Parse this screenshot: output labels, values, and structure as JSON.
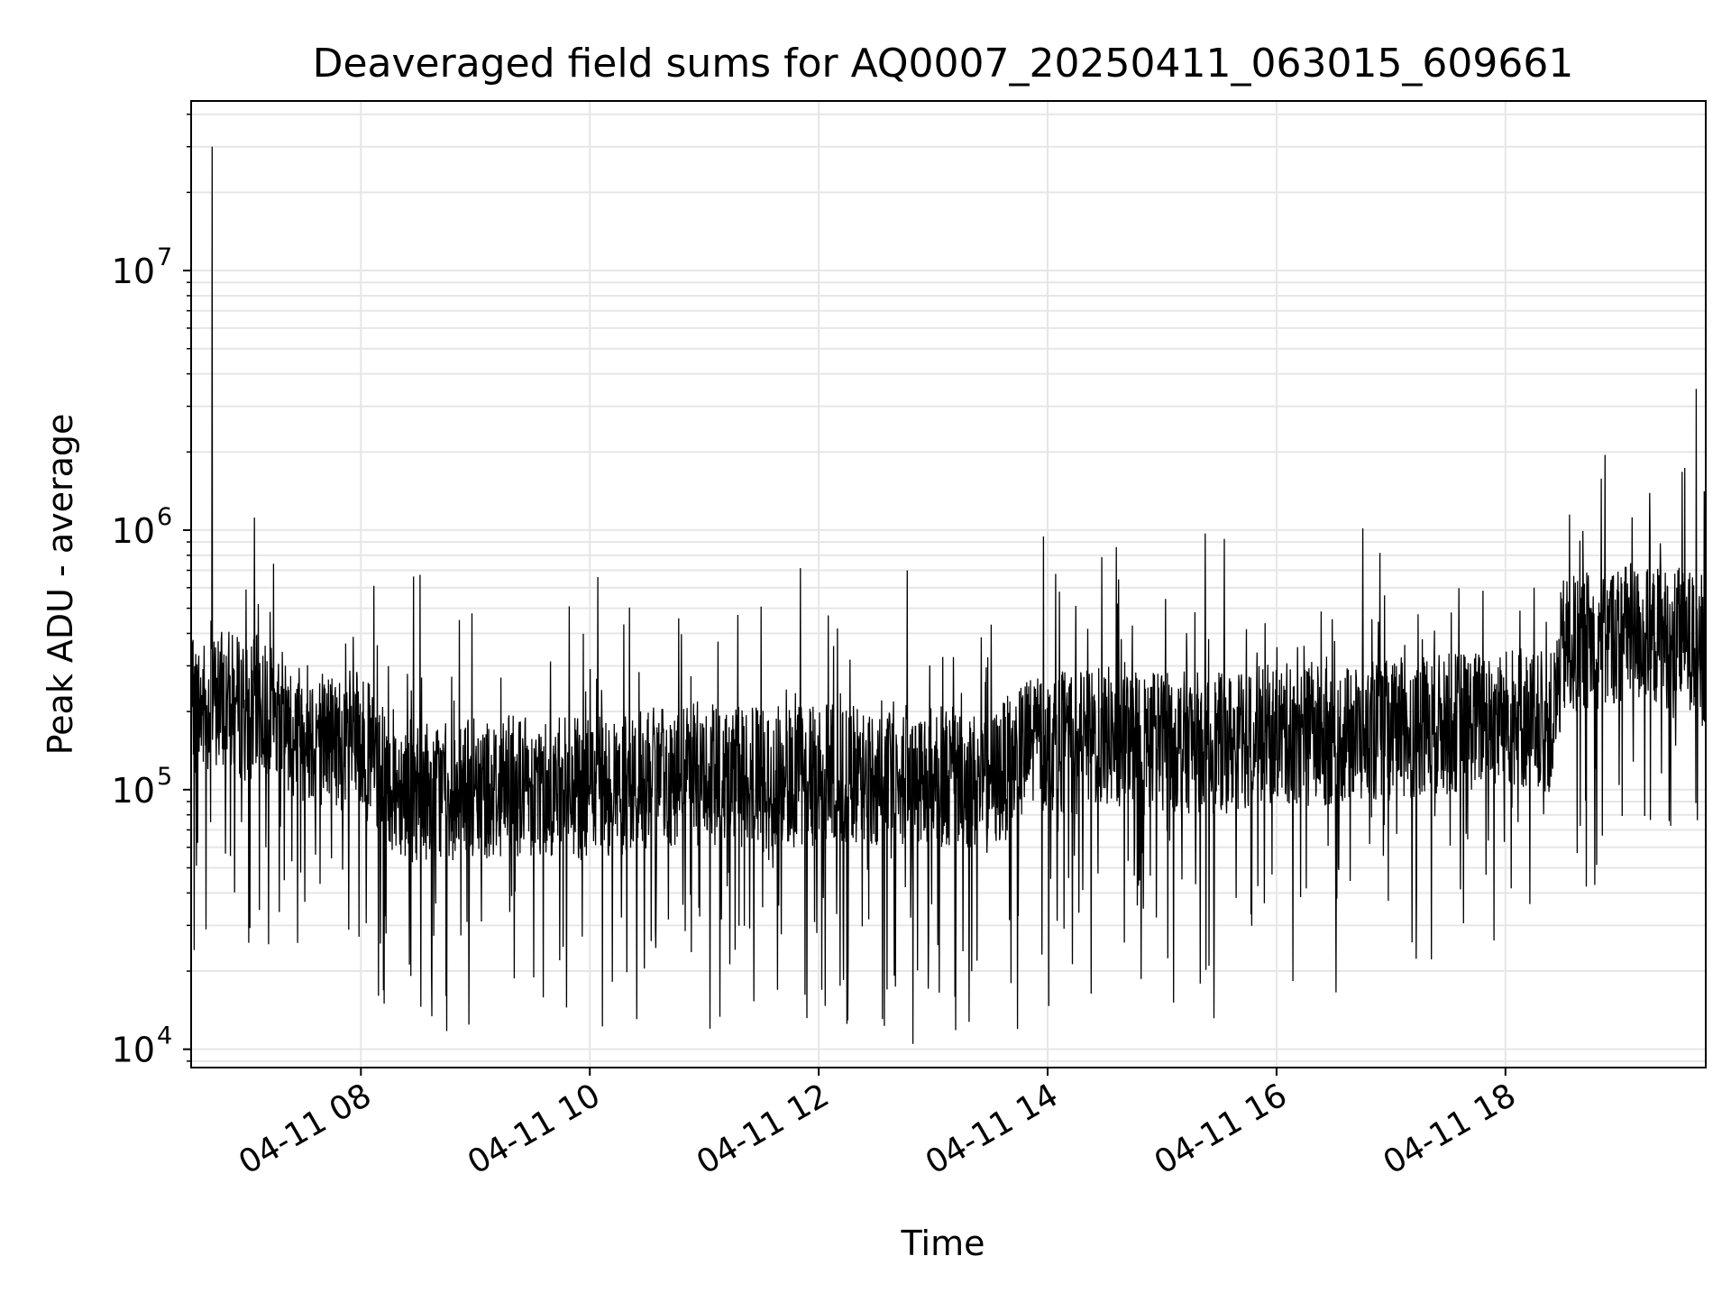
{
  "chart_data": {
    "type": "line",
    "title": "Deaveraged field sums for AQ0007_20250411_063015_609661",
    "xlabel": "Time",
    "ylabel": "Peak ADU - average",
    "yscale": "log",
    "grid": true,
    "legend": "none",
    "x_range": [
      "2025-04-11T06:31:00",
      "2025-04-11T19:45:00"
    ],
    "ylim": [
      8500,
      45000000
    ],
    "x_tick_values": [
      "2025-04-11T08:00:00",
      "2025-04-11T10:00:00",
      "2025-04-11T12:00:00",
      "2025-04-11T14:00:00",
      "2025-04-11T16:00:00",
      "2025-04-11T18:00:00"
    ],
    "x_tick_labels": [
      "04-11 08",
      "04-11 10",
      "04-11 12",
      "04-11 14",
      "04-11 16",
      "04-11 18"
    ],
    "y_tick_values": [
      10000,
      100000,
      1000000,
      10000000
    ],
    "y_tick_labels": [
      "10",
      "10",
      "10",
      "10"
    ],
    "y_tick_exponents": [
      "4",
      "5",
      "6",
      "7"
    ],
    "line_color": "#000000",
    "grid_color": "#e6e6e6",
    "series": [
      {
        "values_note": "",
        "x": [
          "2025-04-11T06:31:00",
          "2025-04-11T06:40:00",
          "2025-04-11T06:42:00",
          "2025-04-11T06:50:00",
          "2025-04-11T07:00:00",
          "2025-04-11T07:06:00",
          "2025-04-11T07:15:00",
          "2025-04-11T07:30:00",
          "2025-04-11T07:45:00",
          "2025-04-11T08:00:00",
          "2025-04-11T08:15:00",
          "2025-04-11T08:30:00",
          "2025-04-11T09:00:00",
          "2025-04-11T09:30:00",
          "2025-04-11T10:00:00",
          "2025-04-11T10:30:00",
          "2025-04-11T11:00:00",
          "2025-04-11T11:30:00",
          "2025-04-11T12:00:00",
          "2025-04-11T12:30:00",
          "2025-04-11T13:00:00",
          "2025-04-11T13:30:00",
          "2025-04-11T13:55:00",
          "2025-04-11T14:15:00",
          "2025-04-11T14:30:00",
          "2025-04-11T15:00:00",
          "2025-04-11T15:30:00",
          "2025-04-11T16:00:00",
          "2025-04-11T16:30:00",
          "2025-04-11T17:00:00",
          "2025-04-11T17:30:00",
          "2025-04-11T18:00:00",
          "2025-04-11T18:25:00",
          "2025-04-11T18:30:00",
          "2025-04-11T19:00:00",
          "2025-04-11T19:30:00",
          "2025-04-11T19:40:00",
          "2025-04-11T19:45:00"
        ],
        "y": [
          200000,
          210000,
          30000000,
          220000,
          200000,
          210000,
          190000,
          170000,
          160000,
          150000,
          110000,
          100000,
          100000,
          105000,
          100000,
          110000,
          115000,
          110000,
          115000,
          110000,
          115000,
          105000,
          160000,
          150000,
          160000,
          155000,
          150000,
          165000,
          160000,
          170000,
          180000,
          190000,
          180000,
          350000,
          400000,
          380000,
          3500000,
          300000
        ]
      }
    ]
  }
}
